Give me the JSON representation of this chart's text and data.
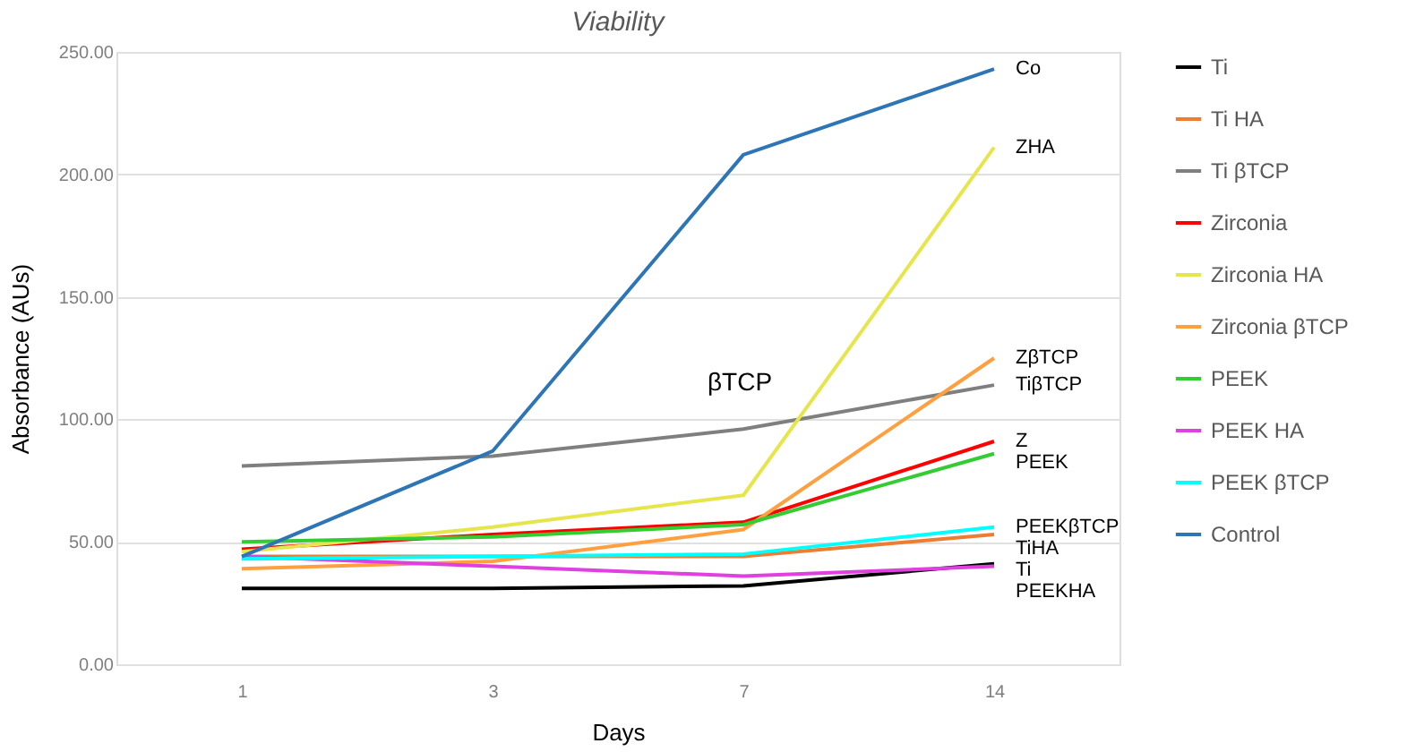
{
  "chart_data": {
    "type": "line",
    "title": "Viability",
    "xlabel": "Days",
    "ylabel": "Absorbance (AUs)",
    "categories": [
      "1",
      "3",
      "7",
      "14"
    ],
    "series": [
      {
        "name": "Ti",
        "color": "#000000",
        "values": [
          31,
          31,
          32,
          41
        ]
      },
      {
        "name": "Ti HA",
        "color": "#ed7d31",
        "values": [
          44,
          44,
          44,
          53
        ]
      },
      {
        "name": "Ti βTCP",
        "color": "#7f7f7f",
        "values": [
          81,
          85,
          96,
          114
        ]
      },
      {
        "name": "Zirconia",
        "color": "#ff0000",
        "values": [
          47,
          53,
          58,
          91
        ]
      },
      {
        "name": "Zirconia HA",
        "color": "#e6e64c",
        "values": [
          46,
          56,
          69,
          211
        ]
      },
      {
        "name": "Zirconia βTCP",
        "color": "#ffa040",
        "values": [
          39,
          42,
          55,
          125
        ]
      },
      {
        "name": "PEEK",
        "color": "#33cc33",
        "values": [
          50,
          52,
          57,
          86
        ]
      },
      {
        "name": "PEEK HA",
        "color": "#e040e0",
        "values": [
          44,
          40,
          36,
          40
        ]
      },
      {
        "name": "PEEK βTCP",
        "color": "#00ffff",
        "values": [
          43,
          44,
          45,
          56
        ]
      },
      {
        "name": "Control",
        "color": "#2e75b6",
        "values": [
          44,
          87,
          208,
          243
        ]
      }
    ],
    "ylim": [
      0,
      250
    ],
    "yticks": [
      {
        "value": 0,
        "label": "0.00"
      },
      {
        "value": 50,
        "label": "50.00"
      },
      {
        "value": 100,
        "label": "100.00"
      },
      {
        "value": 150,
        "label": "150.00"
      },
      {
        "value": 200,
        "label": "200.00"
      },
      {
        "value": 250,
        "label": "250.00"
      }
    ],
    "grid": "y",
    "legend": "right",
    "marker": "none",
    "line_style": "solid",
    "annotations": [
      {
        "text": "Co",
        "x": "14",
        "y": 243
      },
      {
        "text": "ZHA",
        "x": "14",
        "y": 211
      },
      {
        "text": "ZβTCP",
        "x": "14",
        "y": 125
      },
      {
        "text": "TiβTCP",
        "x": "14",
        "y": 114
      },
      {
        "text": "Z",
        "x": "14",
        "y": 91
      },
      {
        "text": "PEEK",
        "x": "14",
        "y": 86
      },
      {
        "text": "PEEKβTCP",
        "x": "14",
        "y": 56
      },
      {
        "text": "TiHA",
        "x": "14",
        "y": 53
      },
      {
        "text": "Ti",
        "x": "14",
        "y": 41
      },
      {
        "text": "PEEKHA",
        "x": "14",
        "y": 40
      },
      "βTCP"
    ]
  }
}
